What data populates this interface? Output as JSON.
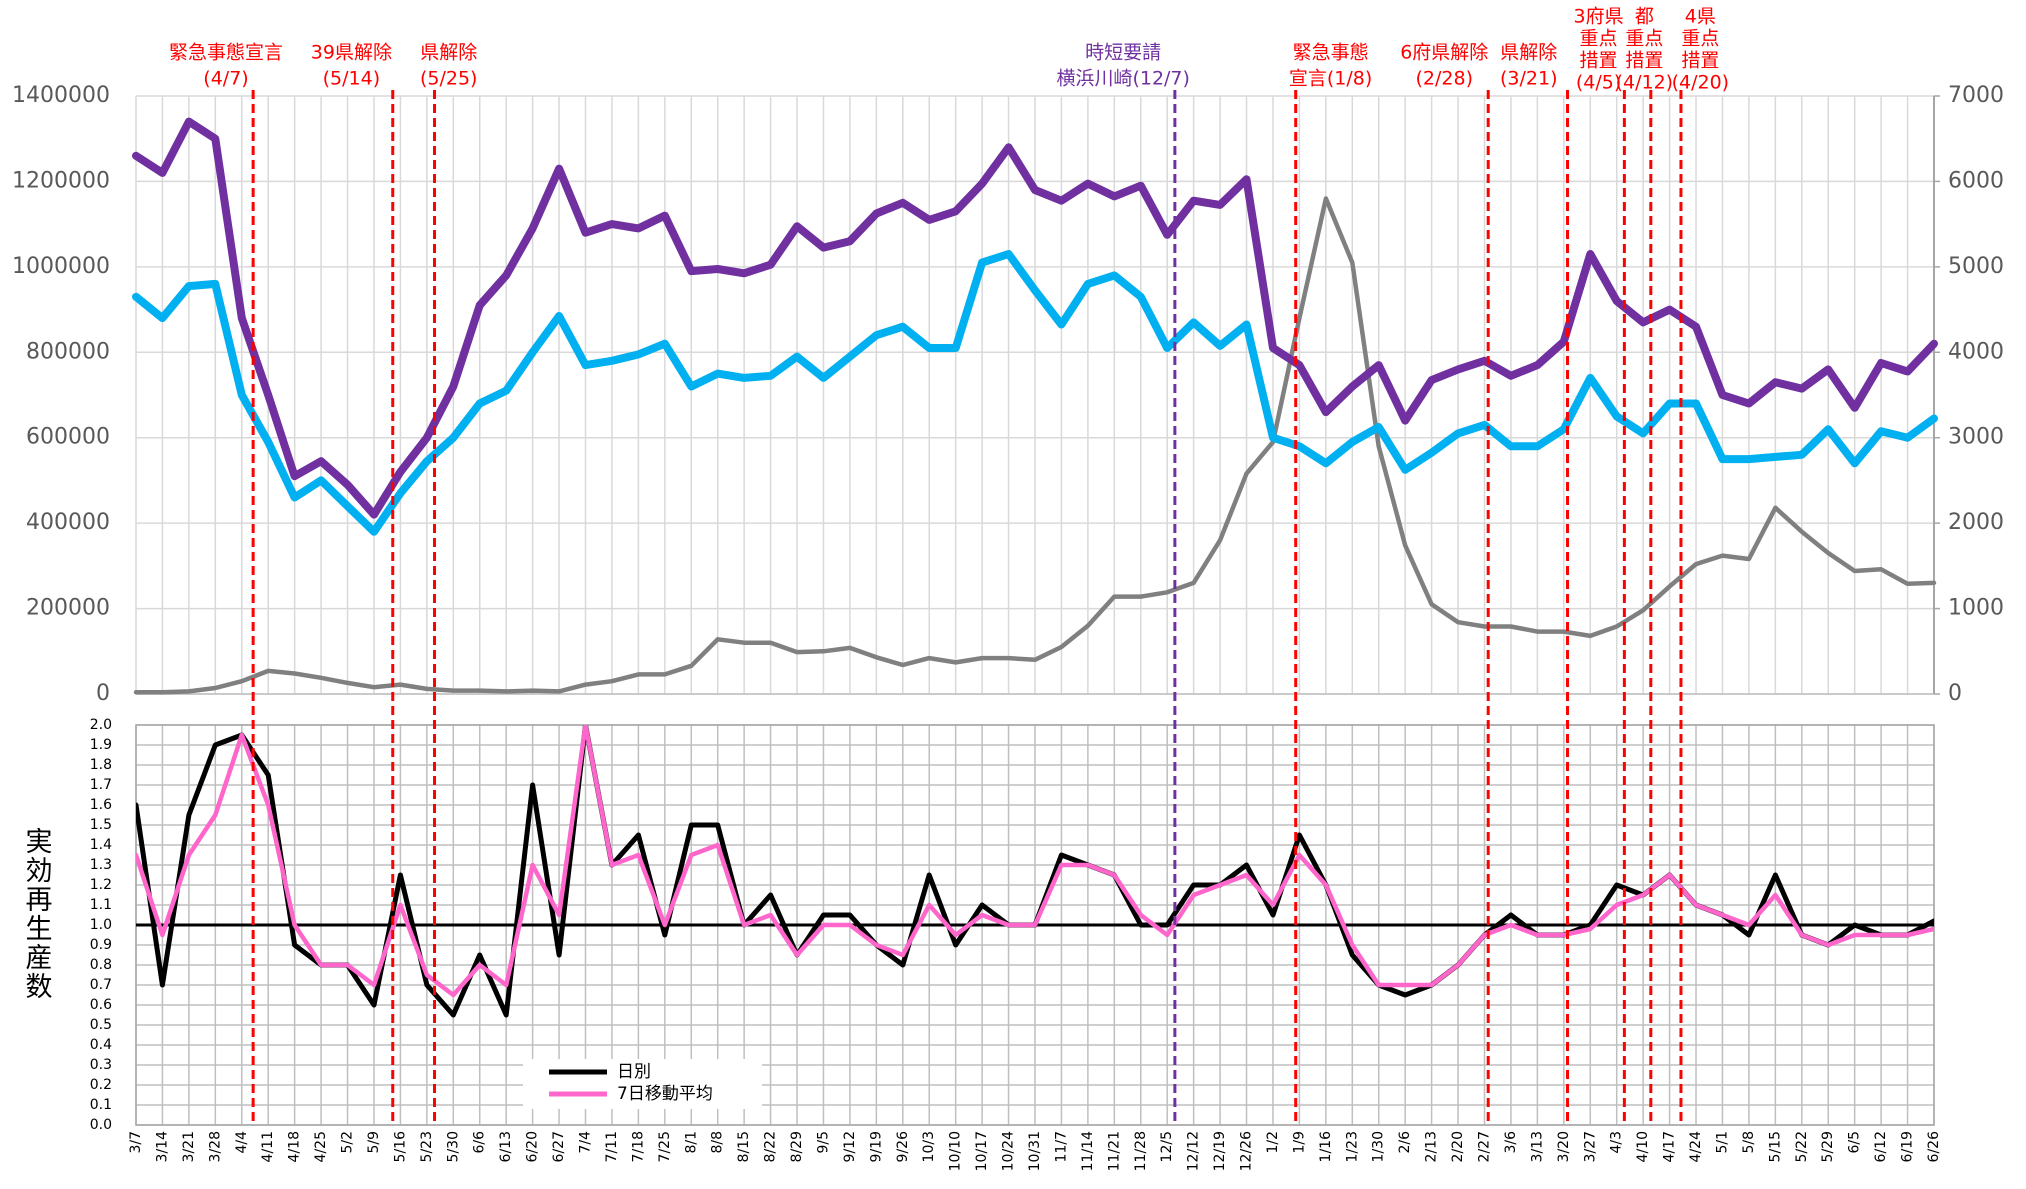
{
  "chart_data": [
    {
      "type": "line",
      "ylim": [
        0,
        1400000
      ],
      "yticks": [
        0,
        200000,
        400000,
        600000,
        800000,
        1000000,
        1200000,
        1400000
      ],
      "y2lim": [
        0,
        7000
      ],
      "y2ticks": [
        0,
        1000,
        2000,
        3000,
        4000,
        5000,
        6000,
        7000
      ],
      "grid": true,
      "series": [
        {
          "color": "#7030a0",
          "values": [
            1260000,
            1220000,
            1340000,
            1300000,
            880000,
            700000,
            510000,
            545000,
            490000,
            420000,
            520000,
            600000,
            720000,
            910000,
            980000,
            1090000,
            1230000,
            1080000,
            1100000,
            1090000,
            1120000,
            990000,
            995000,
            985000,
            1005000,
            1095000,
            1045000,
            1060000,
            1125000,
            1150000,
            1110000,
            1130000,
            1195000,
            1280000,
            1180000,
            1155000,
            1195000,
            1165000,
            1190000,
            1075000,
            1155000,
            1145000,
            1205000,
            810000,
            770000,
            660000,
            720000,
            770000,
            640000,
            735000,
            760000,
            780000,
            745000,
            770000,
            825000,
            1030000,
            920000,
            870000,
            900000,
            860000,
            700000,
            680000,
            730000,
            715000,
            760000,
            670000,
            775000,
            755000,
            820000
          ]
        },
        {
          "color": "#00b0f0",
          "values": [
            930000,
            880000,
            955000,
            960000,
            700000,
            590000,
            460000,
            500000,
            440000,
            380000,
            470000,
            545000,
            600000,
            680000,
            710000,
            800000,
            885000,
            770000,
            780000,
            795000,
            820000,
            720000,
            750000,
            740000,
            745000,
            790000,
            740000,
            790000,
            840000,
            860000,
            810000,
            810000,
            1010000,
            1030000,
            945000,
            865000,
            960000,
            980000,
            930000,
            810000,
            870000,
            815000,
            865000,
            600000,
            580000,
            540000,
            590000,
            625000,
            525000,
            565000,
            610000,
            630000,
            580000,
            580000,
            620000,
            740000,
            650000,
            610000,
            680000,
            680000,
            550000,
            550000,
            555000,
            560000,
            620000,
            540000,
            615000,
            600000,
            645000
          ]
        },
        {
          "color": "#808080",
          "axis": "y2",
          "values": [
            20,
            20,
            30,
            70,
            150,
            270,
            240,
            190,
            130,
            80,
            110,
            60,
            40,
            40,
            30,
            40,
            30,
            110,
            150,
            230,
            230,
            330,
            640,
            600,
            600,
            490,
            500,
            540,
            430,
            340,
            420,
            370,
            420,
            420,
            400,
            550,
            800,
            1140,
            1140,
            1190,
            1300,
            1800,
            2580,
            2950,
            4400,
            5800,
            5050,
            2900,
            1740,
            1050,
            840,
            790,
            790,
            730,
            730,
            680,
            790,
            980,
            1260,
            1520,
            1620,
            1580,
            2180,
            1900,
            1650,
            1440,
            1460,
            1290,
            1300
          ]
        }
      ],
      "annotations": [
        {
          "x": 4.43,
          "color": "#ff0000",
          "lines": [
            "緊急事態宣言",
            "(4/7)"
          ]
        },
        {
          "x": 9.71,
          "color": "#ff0000",
          "lines": [
            "39県解除",
            "(5/14)"
          ]
        },
        {
          "x": 11.29,
          "color": "#ff0000",
          "lines": [
            "県解除",
            "(5/25)"
          ]
        },
        {
          "x": 39.29,
          "color": "#7030a0",
          "lines": [
            "時短要請",
            "横浜川崎(12/7)"
          ]
        },
        {
          "x": 43.86,
          "color": "#ff0000",
          "lines": [
            "緊急事態",
            "宣言(1/8)"
          ]
        },
        {
          "x": 51.14,
          "color": "#ff0000",
          "lines": [
            "6府県解除",
            "(2/28)"
          ]
        },
        {
          "x": 54.14,
          "color": "#ff0000",
          "lines": [
            "県解除",
            "(3/21)"
          ]
        },
        {
          "x": 56.29,
          "color": "#ff0000",
          "lines": [
            "3府県",
            "重点",
            "措置",
            "(4/5)"
          ]
        },
        {
          "x": 57.29,
          "color": "#ff0000",
          "lines": [
            "都",
            "重点",
            "措置",
            "(4/12)"
          ]
        },
        {
          "x": 58.43,
          "color": "#ff0000",
          "lines": [
            "4県",
            "重点",
            "措置",
            "(4/20)"
          ]
        }
      ]
    },
    {
      "type": "line",
      "ylabel": "実効再生産数",
      "categories": [
        "3/7",
        "3/14",
        "3/21",
        "3/28",
        "4/4",
        "4/11",
        "4/18",
        "4/25",
        "5/2",
        "5/9",
        "5/16",
        "5/23",
        "5/30",
        "6/6",
        "6/13",
        "6/20",
        "6/27",
        "7/4",
        "7/11",
        "7/18",
        "7/25",
        "8/1",
        "8/8",
        "8/15",
        "8/22",
        "8/29",
        "9/5",
        "9/12",
        "9/19",
        "9/26",
        "10/3",
        "10/10",
        "10/17",
        "10/24",
        "10/31",
        "11/7",
        "11/14",
        "11/21",
        "11/28",
        "12/5",
        "12/12",
        "12/19",
        "12/26",
        "1/2",
        "1/9",
        "1/16",
        "1/23",
        "1/30",
        "2/6",
        "2/13",
        "2/20",
        "2/27",
        "3/6",
        "3/13",
        "3/20",
        "3/27",
        "4/3",
        "4/10",
        "4/17",
        "4/24",
        "5/1",
        "5/8",
        "5/15",
        "5/22",
        "5/29",
        "6/5",
        "6/12",
        "6/19",
        "6/26"
      ],
      "ylim": [
        0,
        2
      ],
      "yticks": [
        {
          "value": 0,
          "label": "0.0"
        },
        0.1,
        0.2,
        0.3,
        0.4,
        0.5,
        0.6,
        0.7,
        0.8,
        0.9,
        {
          "value": 1,
          "label": "1.0"
        },
        1.1,
        1.2,
        1.3,
        1.4,
        1.5,
        1.6,
        1.7,
        1.8,
        1.9,
        {
          "value": 2,
          "label": "2.0"
        }
      ],
      "grid": true,
      "reference_line": 1,
      "legend": "lower-left",
      "series": [
        {
          "name": "日別",
          "color": "#000000",
          "values": [
            1.6,
            0.7,
            1.55,
            1.9,
            1.95,
            1.75,
            0.9,
            0.8,
            0.8,
            0.6,
            1.25,
            0.7,
            0.55,
            0.85,
            0.55,
            1.7,
            0.85,
            2.0,
            1.3,
            1.45,
            0.95,
            1.5,
            1.5,
            1.0,
            1.15,
            0.85,
            1.05,
            1.05,
            0.9,
            0.8,
            1.25,
            0.9,
            1.1,
            1.0,
            1.0,
            1.35,
            1.3,
            1.25,
            1.0,
            1.0,
            1.2,
            1.2,
            1.3,
            1.05,
            1.45,
            1.2,
            0.85,
            0.7,
            0.65,
            0.7,
            0.8,
            0.95,
            1.05,
            0.95,
            0.95,
            1.0,
            1.2,
            1.15,
            1.25,
            1.1,
            1.05,
            0.95,
            1.25,
            0.95,
            0.9,
            1.0,
            0.95,
            0.95,
            1.02
          ]
        },
        {
          "name": "7日移動平均",
          "color": "#ff66cc",
          "values": [
            1.35,
            0.95,
            1.35,
            1.55,
            1.95,
            1.6,
            1.0,
            0.8,
            0.8,
            0.7,
            1.1,
            0.75,
            0.65,
            0.8,
            0.7,
            1.3,
            1.05,
            2.0,
            1.3,
            1.35,
            1.0,
            1.35,
            1.4,
            1.0,
            1.05,
            0.85,
            1.0,
            1.0,
            0.9,
            0.85,
            1.1,
            0.95,
            1.05,
            1.0,
            1.0,
            1.3,
            1.3,
            1.25,
            1.05,
            0.95,
            1.15,
            1.2,
            1.25,
            1.1,
            1.35,
            1.2,
            0.9,
            0.7,
            0.7,
            0.7,
            0.8,
            0.95,
            1.0,
            0.95,
            0.95,
            0.98,
            1.1,
            1.15,
            1.25,
            1.1,
            1.05,
            1.0,
            1.15,
            0.95,
            0.9,
            0.95,
            0.95,
            0.95,
            0.98
          ]
        }
      ]
    }
  ]
}
